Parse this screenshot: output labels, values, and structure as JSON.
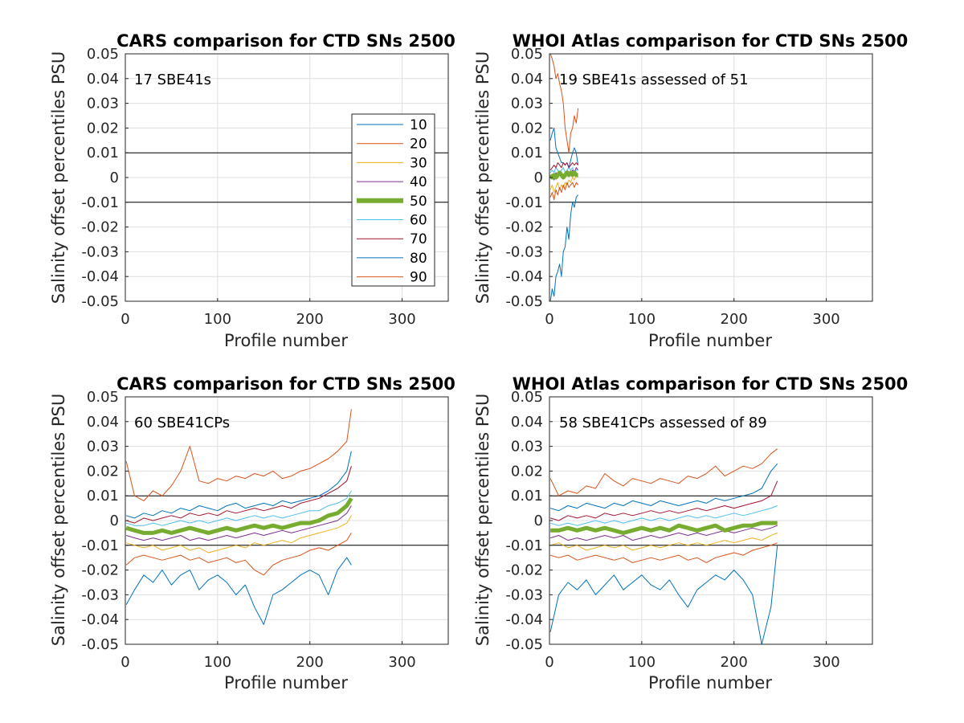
{
  "chart_data": [
    {
      "type": "line",
      "title": "CARS comparison for CTD SNs 2500",
      "xlabel": "Profile number",
      "ylabel": "Salinity offset percentiles PSU",
      "xlim": [
        0,
        350
      ],
      "ylim": [
        -0.05,
        0.05
      ],
      "xticks": [
        "0",
        "100",
        "200",
        "300"
      ],
      "yticks": [
        "-0.05",
        "-0.04",
        "-0.03",
        "-0.02",
        "-0.01",
        "0",
        "0.01",
        "0.02",
        "0.03",
        "0.04",
        "0.05"
      ],
      "grid": true,
      "reference_lines": [
        0.01,
        -0.01
      ],
      "annotation": "17 SBE41s",
      "legend": {
        "position": "right",
        "entries": [
          "10",
          "20",
          "30",
          "40",
          "50",
          "60",
          "70",
          "80",
          "90"
        ]
      },
      "series": []
    },
    {
      "type": "line",
      "title": "WHOI Atlas comparison for CTD SNs 2500",
      "xlabel": "Profile number",
      "ylabel": "Salinity offset percentiles PSU",
      "xlim": [
        0,
        350
      ],
      "ylim": [
        -0.05,
        0.05
      ],
      "xticks": [
        "0",
        "100",
        "200",
        "300"
      ],
      "yticks": [
        "-0.05",
        "-0.04",
        "-0.03",
        "-0.02",
        "-0.01",
        "0",
        "0.01",
        "0.02",
        "0.03",
        "0.04",
        "0.05"
      ],
      "grid": true,
      "reference_lines": [
        0.01,
        -0.01
      ],
      "annotation": "19 SBE41s assessed of 51",
      "x": [
        1,
        3,
        5,
        7,
        9,
        11,
        13,
        15,
        17,
        19,
        21,
        23,
        25,
        27,
        29,
        31
      ],
      "series": [
        {
          "name": "10",
          "color": "#0072BD",
          "width": 1,
          "values": [
            0.015,
            0.018,
            0.02,
            0.012,
            0.01,
            0.008,
            0.006,
            0.006,
            0.005,
            0.006,
            0.004,
            0.007,
            0.01,
            0.012,
            0.01,
            0.005
          ]
        },
        {
          "name": "20",
          "color": "#D95319",
          "width": 1,
          "values": [
            0.05,
            0.048,
            0.045,
            0.04,
            0.042,
            0.038,
            0.035,
            0.03,
            0.02,
            0.015,
            0.01,
            0.018,
            0.02,
            0.025,
            0.022,
            0.028
          ]
        },
        {
          "name": "30",
          "color": "#EDB120",
          "width": 1,
          "values": [
            -0.005,
            -0.003,
            -0.006,
            -0.004,
            -0.002,
            -0.005,
            -0.003,
            -0.004,
            -0.002,
            -0.003,
            -0.001,
            -0.002,
            0.0,
            -0.001,
            0.001,
            0.0
          ]
        },
        {
          "name": "40",
          "color": "#7E2F8E",
          "width": 1,
          "values": [
            0.0,
            0.001,
            -0.001,
            0.002,
            0.0,
            0.001,
            0.002,
            0.0,
            0.001,
            0.003,
            0.002,
            0.001,
            0.003,
            0.002,
            0.004,
            0.003
          ]
        },
        {
          "name": "50",
          "color": "#77AC30",
          "width": 5,
          "values": [
            0.001,
            0.0,
            0.001,
            0.0,
            0.001,
            0.002,
            0.001,
            0.0,
            0.001,
            0.002,
            0.001,
            0.002,
            0.001,
            0.002,
            0.001,
            0.001
          ]
        },
        {
          "name": "60",
          "color": "#4DBEEE",
          "width": 1,
          "values": [
            0.002,
            0.003,
            0.002,
            0.004,
            0.003,
            0.002,
            0.003,
            0.004,
            0.002,
            0.003,
            0.004,
            0.003,
            0.004,
            0.002,
            0.003,
            0.003
          ]
        },
        {
          "name": "70",
          "color": "#A2142F",
          "width": 1,
          "values": [
            0.003,
            0.004,
            0.005,
            0.004,
            0.006,
            0.005,
            0.004,
            0.006,
            0.005,
            0.006,
            0.004,
            0.005,
            0.006,
            0.005,
            0.006,
            0.005
          ]
        },
        {
          "name": "80",
          "color": "#0072BD",
          "width": 1,
          "values": [
            -0.05,
            -0.045,
            -0.048,
            -0.04,
            -0.038,
            -0.035,
            -0.04,
            -0.03,
            -0.028,
            -0.02,
            -0.025,
            -0.015,
            -0.01,
            -0.012,
            -0.008,
            -0.007
          ]
        },
        {
          "name": "90",
          "color": "#D95319",
          "width": 1,
          "values": [
            -0.008,
            -0.006,
            -0.009,
            -0.005,
            -0.007,
            -0.004,
            -0.006,
            -0.003,
            -0.005,
            -0.002,
            -0.004,
            -0.003,
            -0.002,
            -0.004,
            -0.002,
            -0.003
          ]
        }
      ]
    },
    {
      "type": "line",
      "title": "CARS comparison for CTD SNs 2500",
      "xlabel": "Profile number",
      "ylabel": "Salinity offset percentiles PSU",
      "xlim": [
        0,
        350
      ],
      "ylim": [
        -0.05,
        0.05
      ],
      "xticks": [
        "0",
        "100",
        "200",
        "300"
      ],
      "yticks": [
        "-0.05",
        "-0.04",
        "-0.03",
        "-0.02",
        "-0.01",
        "0",
        "0.01",
        "0.02",
        "0.03",
        "0.04",
        "0.05"
      ],
      "grid": true,
      "reference_lines": [
        0.01,
        -0.01
      ],
      "annotation": "60 SBE41CPs",
      "x": [
        1,
        10,
        20,
        30,
        40,
        50,
        60,
        70,
        80,
        90,
        100,
        110,
        120,
        130,
        140,
        150,
        160,
        170,
        180,
        190,
        200,
        210,
        220,
        230,
        240,
        245
      ],
      "series": [
        {
          "name": "10",
          "color": "#0072BD",
          "width": 1,
          "values": [
            0.002,
            0.001,
            0.003,
            0.002,
            0.004,
            0.003,
            0.005,
            0.004,
            0.006,
            0.005,
            0.004,
            0.006,
            0.007,
            0.005,
            0.006,
            0.007,
            0.006,
            0.008,
            0.007,
            0.008,
            0.009,
            0.01,
            0.012,
            0.015,
            0.02,
            0.028
          ]
        },
        {
          "name": "20",
          "color": "#D95319",
          "width": 1,
          "values": [
            0.024,
            0.01,
            0.008,
            0.012,
            0.01,
            0.014,
            0.02,
            0.03,
            0.016,
            0.015,
            0.017,
            0.016,
            0.018,
            0.017,
            0.019,
            0.018,
            0.02,
            0.017,
            0.018,
            0.02,
            0.021,
            0.023,
            0.025,
            0.028,
            0.032,
            0.045
          ]
        },
        {
          "name": "30",
          "color": "#EDB120",
          "width": 1,
          "values": [
            -0.009,
            -0.01,
            -0.011,
            -0.01,
            -0.012,
            -0.011,
            -0.01,
            -0.012,
            -0.011,
            -0.013,
            -0.012,
            -0.011,
            -0.01,
            -0.011,
            -0.009,
            -0.01,
            -0.009,
            -0.008,
            -0.009,
            -0.007,
            -0.006,
            -0.005,
            -0.004,
            -0.003,
            -0.001,
            0.002
          ]
        },
        {
          "name": "40",
          "color": "#7E2F8E",
          "width": 1,
          "values": [
            -0.006,
            -0.007,
            -0.008,
            -0.007,
            -0.008,
            -0.007,
            -0.006,
            -0.008,
            -0.007,
            -0.008,
            -0.007,
            -0.006,
            -0.007,
            -0.006,
            -0.005,
            -0.006,
            -0.005,
            -0.004,
            -0.005,
            -0.004,
            -0.003,
            -0.002,
            -0.001,
            0.0,
            0.003,
            0.006
          ]
        },
        {
          "name": "50",
          "color": "#77AC30",
          "width": 5,
          "values": [
            -0.003,
            -0.004,
            -0.005,
            -0.005,
            -0.004,
            -0.005,
            -0.004,
            -0.003,
            -0.004,
            -0.005,
            -0.004,
            -0.003,
            -0.004,
            -0.003,
            -0.002,
            -0.003,
            -0.002,
            -0.003,
            -0.002,
            -0.001,
            -0.001,
            0.0,
            0.002,
            0.003,
            0.006,
            0.009
          ]
        },
        {
          "name": "60",
          "color": "#4DBEEE",
          "width": 1,
          "values": [
            -0.001,
            -0.002,
            -0.002,
            -0.001,
            -0.002,
            -0.001,
            0.0,
            -0.001,
            0.0,
            -0.001,
            0.0,
            0.001,
            0.0,
            0.001,
            0.002,
            0.001,
            0.002,
            0.001,
            0.002,
            0.003,
            0.004,
            0.004,
            0.006,
            0.007,
            0.009,
            0.012
          ]
        },
        {
          "name": "70",
          "color": "#A2142F",
          "width": 1,
          "values": [
            0.0,
            -0.001,
            0.001,
            0.0,
            0.001,
            0.002,
            0.001,
            0.003,
            0.002,
            0.003,
            0.002,
            0.004,
            0.003,
            0.004,
            0.005,
            0.004,
            0.005,
            0.006,
            0.005,
            0.007,
            0.008,
            0.009,
            0.011,
            0.013,
            0.016,
            0.022
          ]
        },
        {
          "name": "80",
          "color": "#0072BD",
          "width": 1,
          "values": [
            -0.034,
            -0.028,
            -0.022,
            -0.025,
            -0.02,
            -0.026,
            -0.022,
            -0.02,
            -0.028,
            -0.024,
            -0.022,
            -0.025,
            -0.03,
            -0.026,
            -0.035,
            -0.042,
            -0.03,
            -0.028,
            -0.025,
            -0.022,
            -0.02,
            -0.022,
            -0.03,
            -0.02,
            -0.015,
            -0.018
          ]
        },
        {
          "name": "90",
          "color": "#D95319",
          "width": 1,
          "values": [
            -0.018,
            -0.015,
            -0.014,
            -0.015,
            -0.016,
            -0.015,
            -0.014,
            -0.016,
            -0.015,
            -0.017,
            -0.016,
            -0.015,
            -0.017,
            -0.016,
            -0.02,
            -0.022,
            -0.018,
            -0.016,
            -0.015,
            -0.014,
            -0.012,
            -0.011,
            -0.012,
            -0.01,
            -0.008,
            -0.005
          ]
        }
      ]
    },
    {
      "type": "line",
      "title": "WHOI Atlas comparison for CTD SNs 2500",
      "xlabel": "Profile number",
      "ylabel": "Salinity offset percentiles PSU",
      "xlim": [
        0,
        350
      ],
      "ylim": [
        -0.05,
        0.05
      ],
      "xticks": [
        "0",
        "100",
        "200",
        "300"
      ],
      "yticks": [
        "-0.05",
        "-0.04",
        "-0.03",
        "-0.02",
        "-0.01",
        "0",
        "0.01",
        "0.02",
        "0.03",
        "0.04",
        "0.05"
      ],
      "grid": true,
      "reference_lines": [
        0.01,
        -0.01
      ],
      "annotation": "58 SBE41CPs assessed of 89",
      "x": [
        1,
        10,
        20,
        30,
        40,
        50,
        60,
        70,
        80,
        90,
        100,
        110,
        120,
        130,
        140,
        150,
        160,
        170,
        180,
        190,
        200,
        210,
        220,
        230,
        240,
        247
      ],
      "series": [
        {
          "name": "10",
          "color": "#0072BD",
          "width": 1,
          "values": [
            0.005,
            0.004,
            0.006,
            0.005,
            0.007,
            0.006,
            0.005,
            0.007,
            0.006,
            0.008,
            0.007,
            0.006,
            0.008,
            0.007,
            0.006,
            0.007,
            0.008,
            0.007,
            0.009,
            0.008,
            0.009,
            0.01,
            0.011,
            0.013,
            0.02,
            0.023
          ]
        },
        {
          "name": "20",
          "color": "#D95319",
          "width": 1,
          "values": [
            0.017,
            0.01,
            0.012,
            0.011,
            0.014,
            0.013,
            0.019,
            0.016,
            0.014,
            0.017,
            0.016,
            0.015,
            0.017,
            0.016,
            0.015,
            0.018,
            0.017,
            0.019,
            0.022,
            0.018,
            0.02,
            0.022,
            0.021,
            0.023,
            0.027,
            0.029
          ]
        },
        {
          "name": "30",
          "color": "#EDB120",
          "width": 1,
          "values": [
            -0.01,
            -0.009,
            -0.011,
            -0.01,
            -0.012,
            -0.011,
            -0.01,
            -0.011,
            -0.01,
            -0.012,
            -0.011,
            -0.01,
            -0.011,
            -0.01,
            -0.009,
            -0.01,
            -0.009,
            -0.01,
            -0.009,
            -0.008,
            -0.009,
            -0.008,
            -0.007,
            -0.008,
            -0.006,
            -0.005
          ]
        },
        {
          "name": "40",
          "color": "#7E2F8E",
          "width": 1,
          "values": [
            -0.007,
            -0.006,
            -0.008,
            -0.007,
            -0.008,
            -0.007,
            -0.006,
            -0.007,
            -0.006,
            -0.008,
            -0.007,
            -0.006,
            -0.007,
            -0.006,
            -0.005,
            -0.006,
            -0.005,
            -0.006,
            -0.005,
            -0.004,
            -0.005,
            -0.004,
            -0.003,
            -0.004,
            -0.003,
            -0.002
          ]
        },
        {
          "name": "50",
          "color": "#77AC30",
          "width": 5,
          "values": [
            -0.004,
            -0.004,
            -0.003,
            -0.004,
            -0.003,
            -0.004,
            -0.003,
            -0.004,
            -0.005,
            -0.004,
            -0.003,
            -0.004,
            -0.003,
            -0.004,
            -0.002,
            -0.003,
            -0.004,
            -0.003,
            -0.002,
            -0.004,
            -0.003,
            -0.002,
            -0.002,
            -0.001,
            -0.001,
            -0.001
          ]
        },
        {
          "name": "60",
          "color": "#4DBEEE",
          "width": 1,
          "values": [
            -0.001,
            -0.002,
            -0.001,
            -0.002,
            -0.001,
            0.0,
            -0.001,
            0.0,
            -0.001,
            0.0,
            0.001,
            0.0,
            0.001,
            0.0,
            0.001,
            0.002,
            0.001,
            0.002,
            0.001,
            0.002,
            0.003,
            0.002,
            0.003,
            0.004,
            0.005,
            0.006
          ]
        },
        {
          "name": "70",
          "color": "#A2142F",
          "width": 1,
          "values": [
            0.001,
            0.0,
            0.002,
            0.001,
            0.002,
            0.001,
            0.003,
            0.002,
            0.003,
            0.002,
            0.003,
            0.004,
            0.003,
            0.004,
            0.003,
            0.004,
            0.005,
            0.004,
            0.005,
            0.006,
            0.005,
            0.006,
            0.007,
            0.008,
            0.01,
            0.016
          ]
        },
        {
          "name": "80",
          "color": "#0072BD",
          "width": 1,
          "values": [
            -0.045,
            -0.03,
            -0.025,
            -0.028,
            -0.024,
            -0.03,
            -0.026,
            -0.022,
            -0.028,
            -0.025,
            -0.022,
            -0.026,
            -0.028,
            -0.024,
            -0.03,
            -0.035,
            -0.028,
            -0.025,
            -0.022,
            -0.024,
            -0.02,
            -0.024,
            -0.03,
            -0.05,
            -0.035,
            -0.01
          ]
        },
        {
          "name": "90",
          "color": "#D95319",
          "width": 1,
          "values": [
            -0.014,
            -0.015,
            -0.014,
            -0.016,
            -0.015,
            -0.014,
            -0.015,
            -0.016,
            -0.015,
            -0.017,
            -0.016,
            -0.015,
            -0.016,
            -0.015,
            -0.014,
            -0.016,
            -0.015,
            -0.017,
            -0.015,
            -0.014,
            -0.013,
            -0.014,
            -0.012,
            -0.011,
            -0.01,
            -0.009
          ]
        }
      ]
    }
  ]
}
